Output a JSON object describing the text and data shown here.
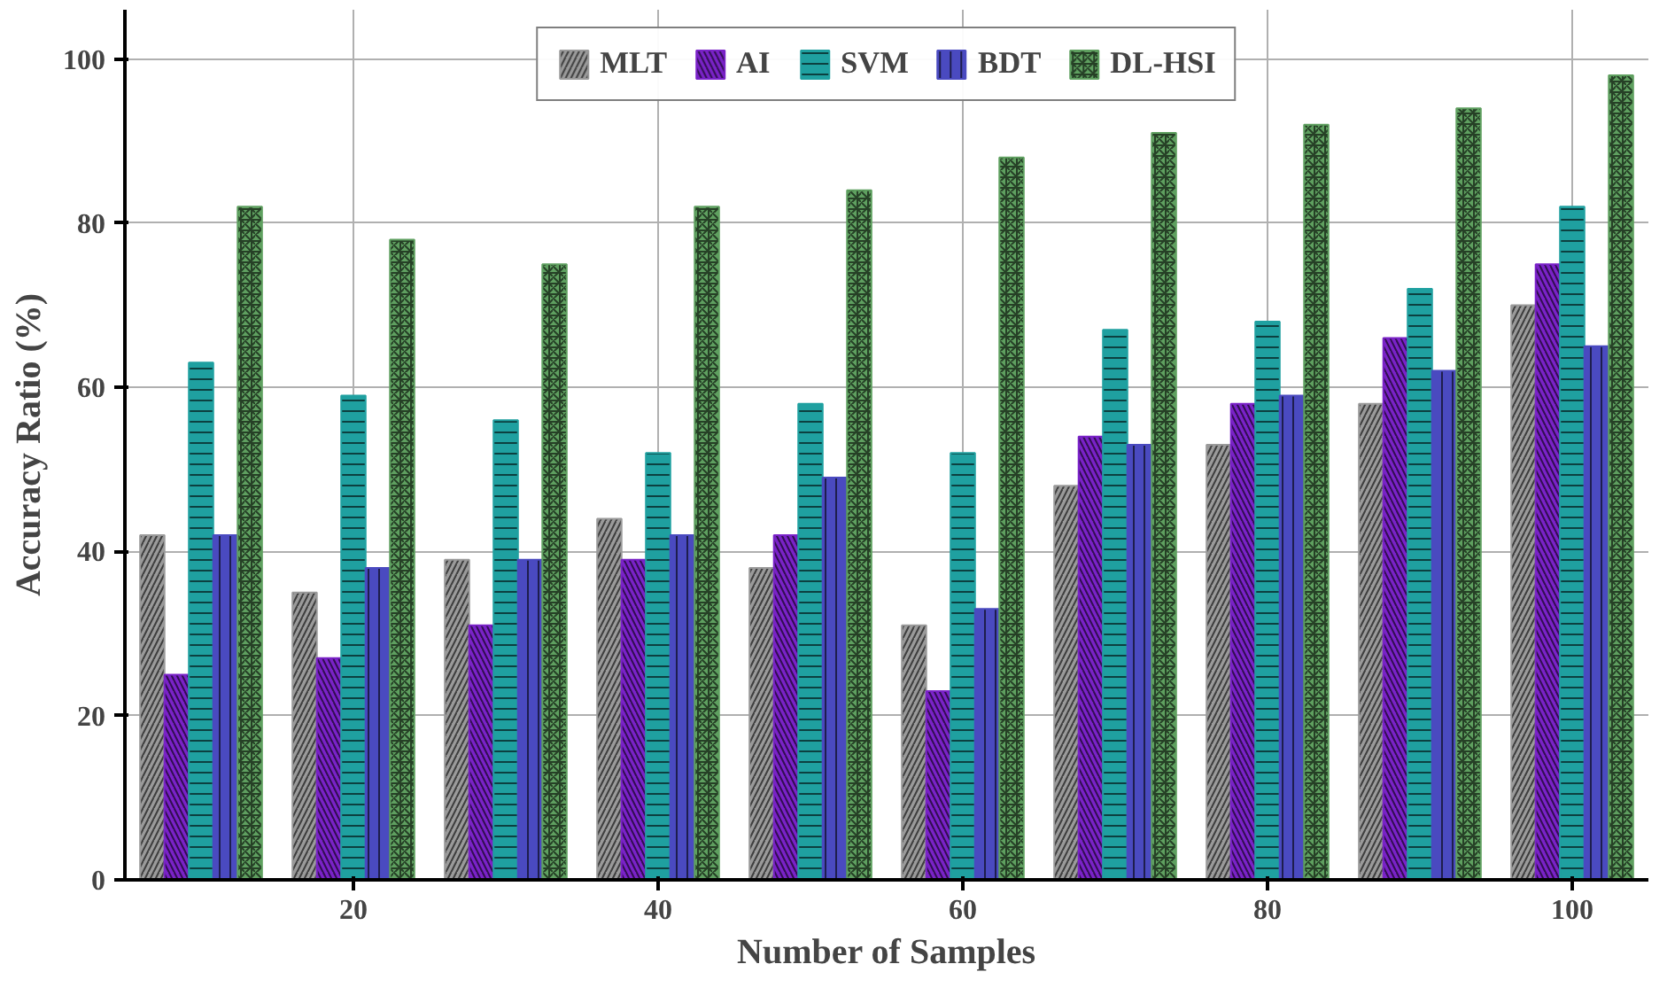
{
  "chart_data": {
    "type": "bar",
    "xlabel": "Number of Samples",
    "ylabel": "Accuracy Ratio (%)",
    "x": [
      10,
      20,
      30,
      40,
      50,
      60,
      70,
      80,
      90,
      100
    ],
    "xlim": [
      5,
      105
    ],
    "xticks": [
      20,
      40,
      60,
      80,
      100
    ],
    "ylim": [
      0,
      106
    ],
    "yticks": [
      0,
      20,
      40,
      60,
      80,
      100
    ],
    "grid": true,
    "legend": "top",
    "series": [
      {
        "name": "MLT",
        "color": "#9a9a9a",
        "values": [
          42,
          35,
          39,
          44,
          38,
          31,
          48,
          53,
          58,
          70
        ]
      },
      {
        "name": "AI",
        "color": "#7a22c8",
        "values": [
          25,
          27,
          31,
          39,
          42,
          23,
          54,
          58,
          66,
          75
        ]
      },
      {
        "name": "SVM",
        "color": "#1fa0a0",
        "values": [
          63,
          59,
          56,
          52,
          58,
          52,
          67,
          68,
          72,
          82
        ]
      },
      {
        "name": "BDT",
        "color": "#4a4ac0",
        "values": [
          42,
          38,
          39,
          42,
          49,
          33,
          53,
          59,
          62,
          65
        ]
      },
      {
        "name": "DL-HSI",
        "color": "#5fa060",
        "values": [
          82,
          78,
          75,
          82,
          84,
          88,
          91,
          92,
          94,
          98
        ]
      }
    ]
  }
}
